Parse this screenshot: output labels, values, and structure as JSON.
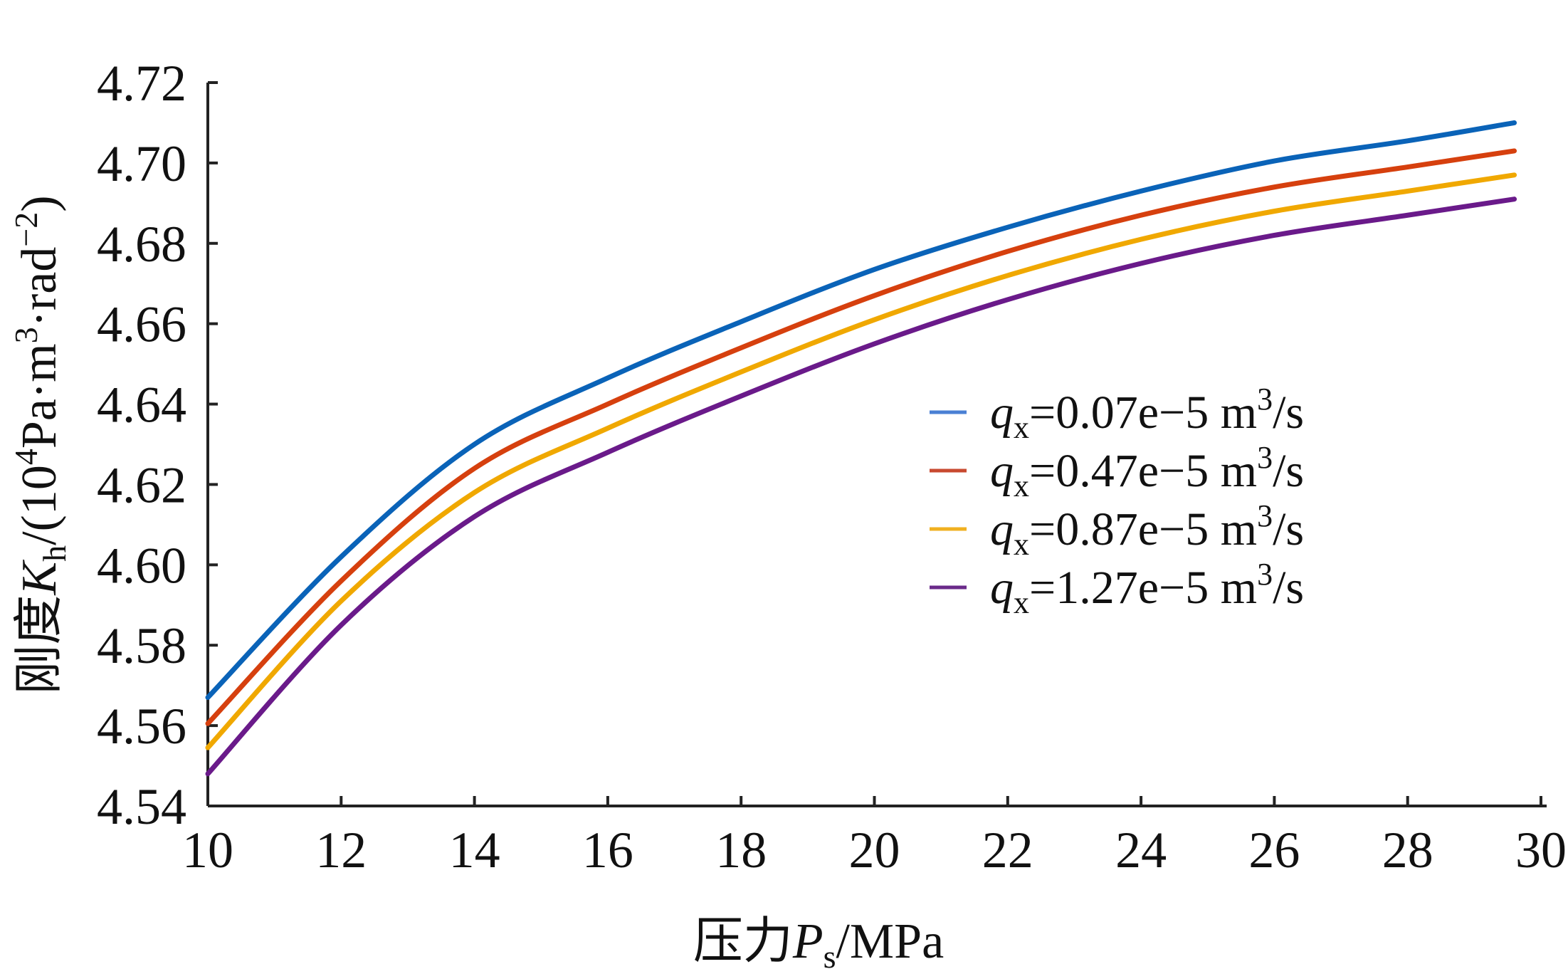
{
  "chart_data": {
    "type": "line",
    "title": "",
    "xlabel": "压力P_s/MPa",
    "xlabel_parts": {
      "prefix": "压力",
      "var": "P",
      "sub": "s",
      "suffix": "/MPa"
    },
    "ylabel": "刚度K_h/(10^4Pa·m^3·rad^-2)",
    "ylabel_parts": {
      "prefix": "刚度",
      "var": "K",
      "sub": "h",
      "a": "/(10",
      "sup1": "4",
      "b": "Pa·m",
      "sup2": "3",
      "c": "·rad",
      "sup3": "−2",
      "d": ")"
    },
    "xlim": [
      10,
      30
    ],
    "ylim": [
      4.54,
      4.72
    ],
    "xticks": [
      "10",
      "12",
      "14",
      "16",
      "18",
      "20",
      "22",
      "24",
      "26",
      "28",
      "30"
    ],
    "yticks": [
      "4.54",
      "4.56",
      "4.58",
      "4.60",
      "4.62",
      "4.64",
      "4.66",
      "4.68",
      "4.70",
      "4.72"
    ],
    "grid": false,
    "legend_position": "center-right",
    "x": [
      10,
      12,
      14,
      16,
      18,
      20,
      22,
      24,
      26,
      28,
      29.6
    ],
    "series": [
      {
        "name": "q_x=0.07e−5 m³/s",
        "label_var": "q",
        "label_sub": "x",
        "label_rest": "=0.07e−5 m",
        "label_sup": "3",
        "label_end": "/s",
        "color": "#0a63b8",
        "legend_color": "#4a80d4",
        "values": [
          4.567,
          4.602,
          4.63,
          4.6465,
          4.6605,
          4.6735,
          4.684,
          4.693,
          4.7005,
          4.7055,
          4.71
        ]
      },
      {
        "name": "q_x=0.47e−5 m³/s",
        "label_var": "q",
        "label_sub": "x",
        "label_rest": "=0.47e−5 m",
        "label_sup": "3",
        "label_end": "/s",
        "color": "#d6400e",
        "legend_color": "#c84a30",
        "values": [
          4.5605,
          4.596,
          4.624,
          4.64,
          4.654,
          4.667,
          4.678,
          4.687,
          4.694,
          4.699,
          4.703
        ]
      },
      {
        "name": "q_x=0.87e−5 m³/s",
        "label_var": "q",
        "label_sub": "x",
        "label_rest": "=0.87e−5 m",
        "label_sup": "3",
        "label_end": "/s",
        "color": "#f0a800",
        "legend_color": "#f0b020",
        "values": [
          4.5545,
          4.591,
          4.618,
          4.634,
          4.648,
          4.661,
          4.672,
          4.681,
          4.688,
          4.693,
          4.697
        ]
      },
      {
        "name": "q_x=1.27e−5 m³/s",
        "label_var": "q",
        "label_sub": "x",
        "label_rest": "=1.27e−5 m",
        "label_sup": "3",
        "label_end": "/s",
        "color": "#6a1a8a",
        "legend_color": "#6a2a8a",
        "values": [
          4.548,
          4.585,
          4.612,
          4.628,
          4.642,
          4.655,
          4.666,
          4.675,
          4.682,
          4.687,
          4.691
        ]
      }
    ]
  }
}
